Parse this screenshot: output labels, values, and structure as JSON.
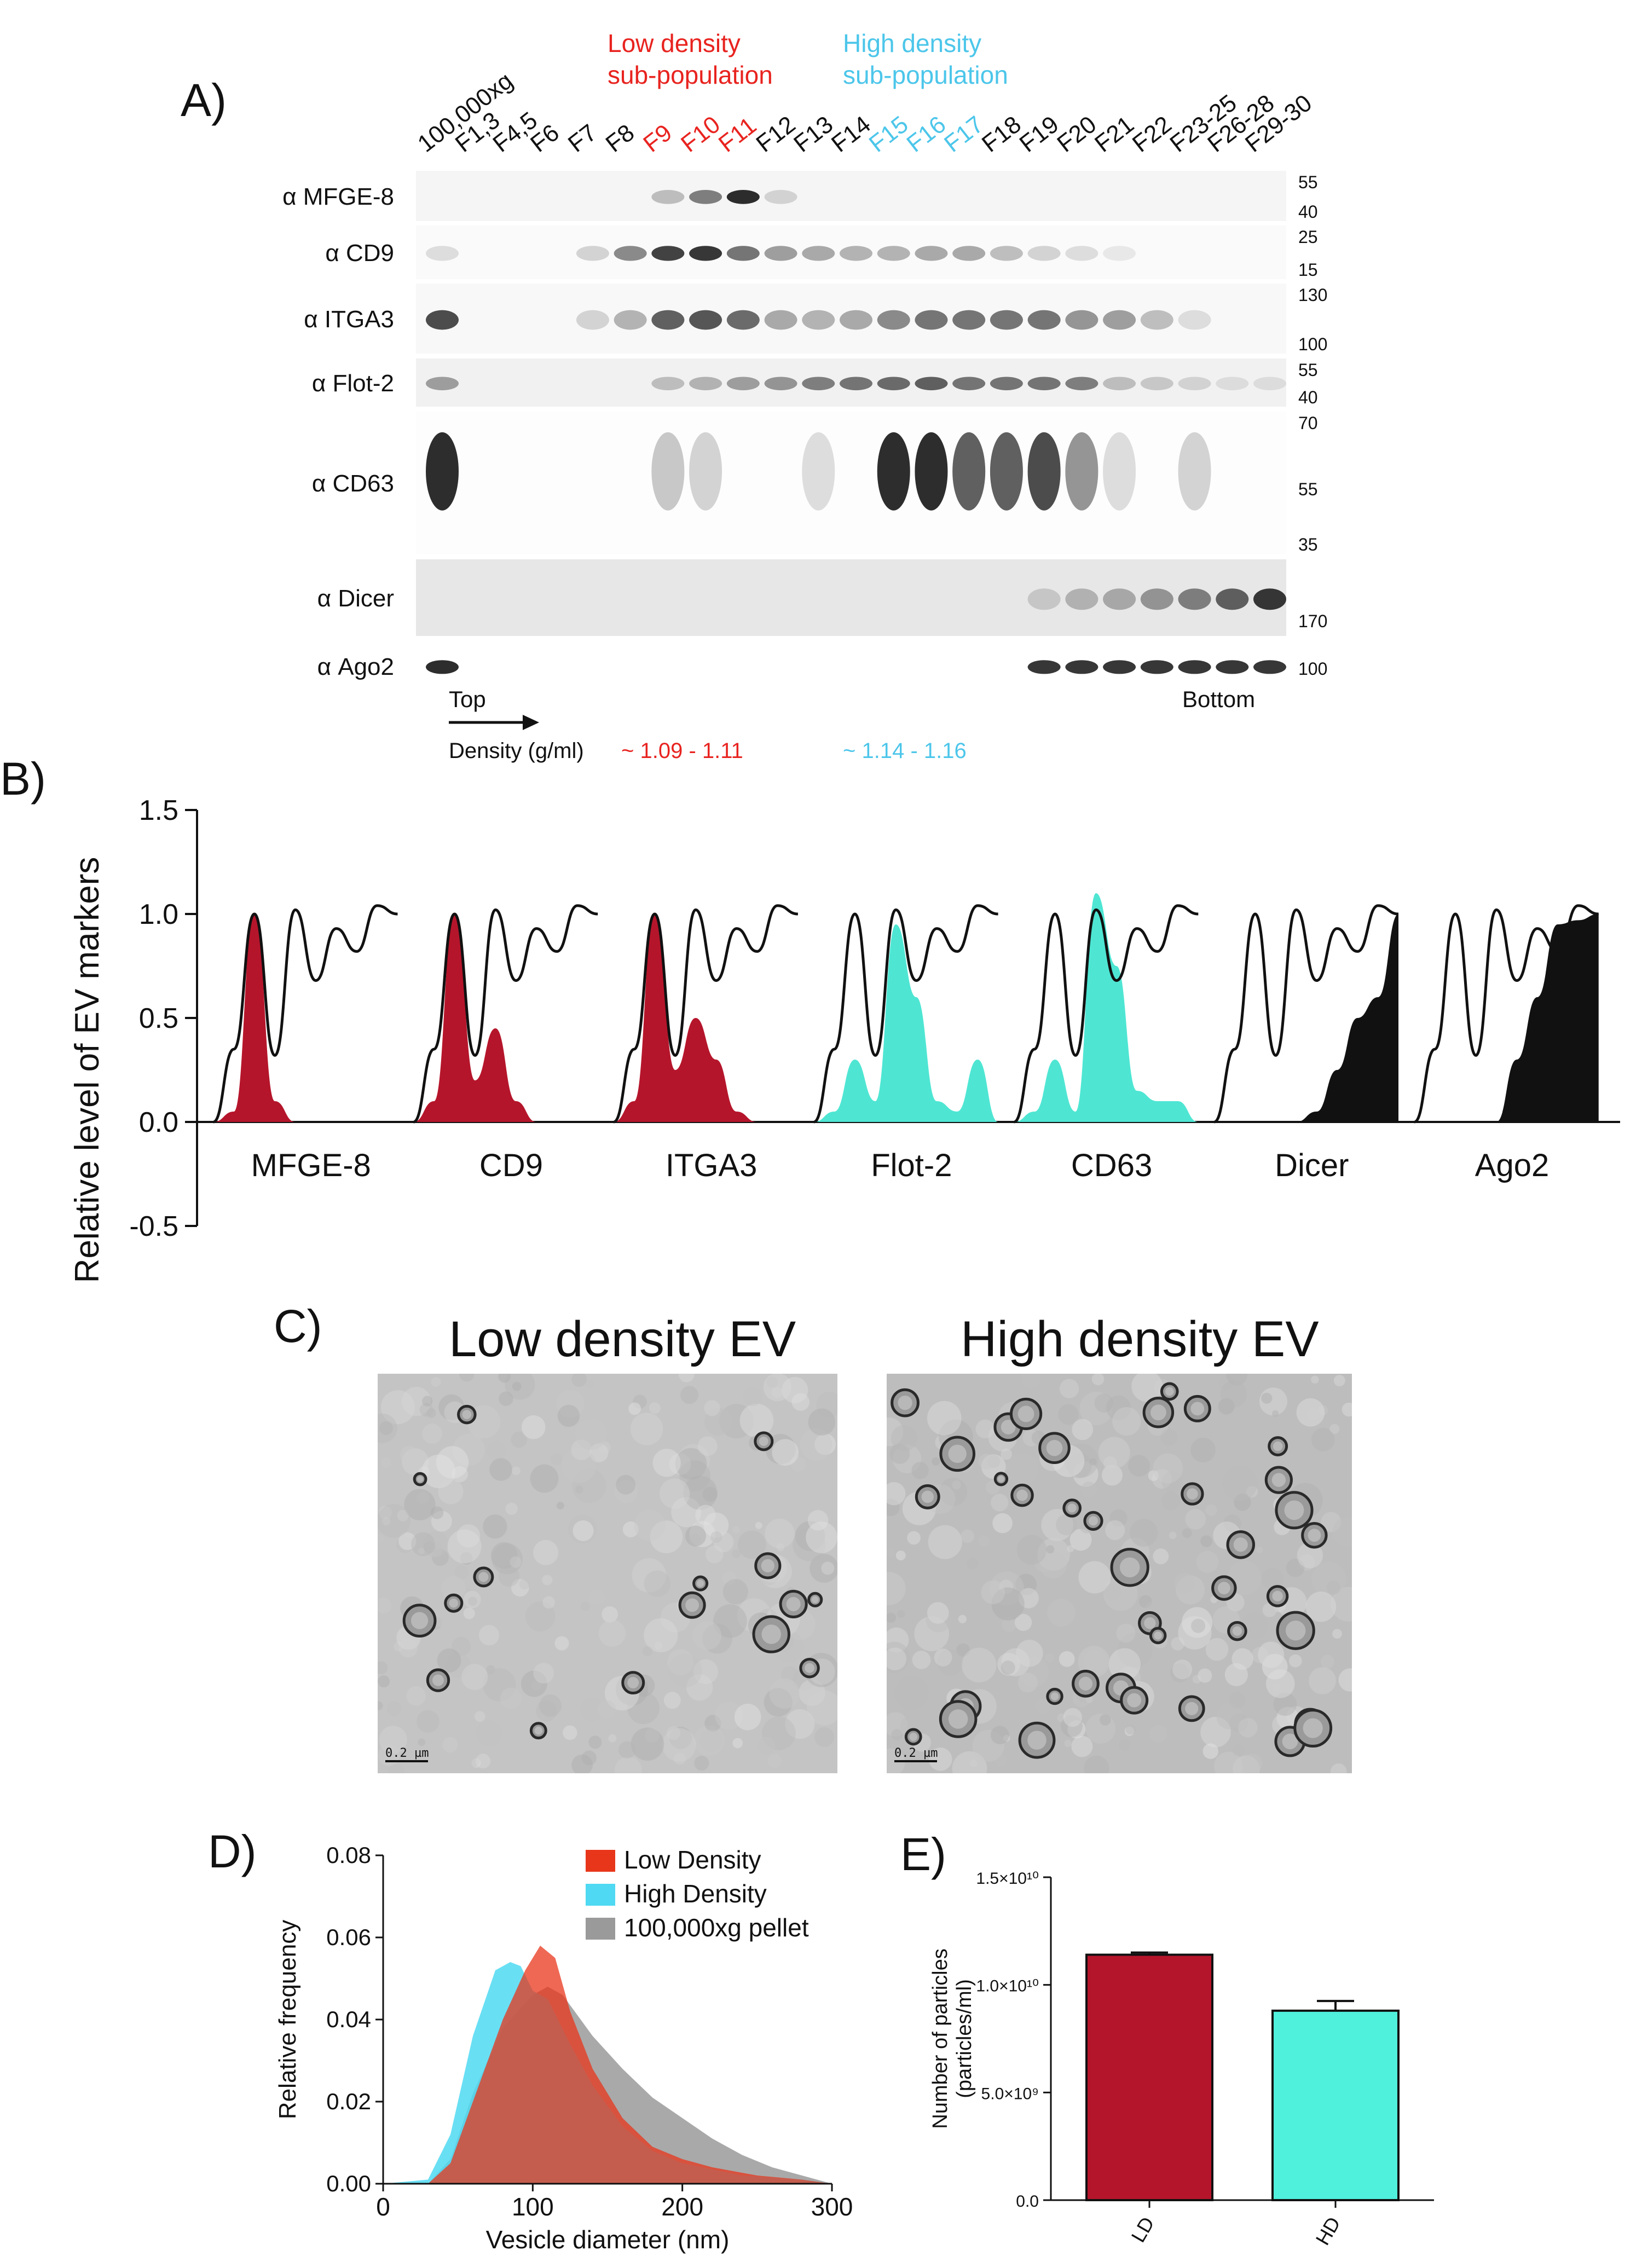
{
  "panels": {
    "a": "A)",
    "b": "B)",
    "c": "C)",
    "d": "D)",
    "e": "E)"
  },
  "panel_a": {
    "group_low": [
      "Low density",
      "sub-population"
    ],
    "group_high": [
      "High density",
      "sub-population"
    ],
    "lanes": [
      {
        "label": "100,000xg",
        "color": "#111111"
      },
      {
        "label": "F1,3",
        "color": "#111111"
      },
      {
        "label": "F4,5",
        "color": "#111111"
      },
      {
        "label": "F6",
        "color": "#111111"
      },
      {
        "label": "F7",
        "color": "#111111"
      },
      {
        "label": "F8",
        "color": "#111111"
      },
      {
        "label": "F9",
        "color": "#e8231f"
      },
      {
        "label": "F10",
        "color": "#e8231f"
      },
      {
        "label": "F11",
        "color": "#e8231f"
      },
      {
        "label": "F12",
        "color": "#111111"
      },
      {
        "label": "F13",
        "color": "#111111"
      },
      {
        "label": "F14",
        "color": "#111111"
      },
      {
        "label": "F15",
        "color": "#4cc6ea"
      },
      {
        "label": "F16",
        "color": "#4cc6ea"
      },
      {
        "label": "F17",
        "color": "#4cc6ea"
      },
      {
        "label": "F18",
        "color": "#111111"
      },
      {
        "label": "F19",
        "color": "#111111"
      },
      {
        "label": "F20",
        "color": "#111111"
      },
      {
        "label": "F21",
        "color": "#111111"
      },
      {
        "label": "F22",
        "color": "#111111"
      },
      {
        "label": "F23-25",
        "color": "#111111"
      },
      {
        "label": "F26-28",
        "color": "#111111"
      },
      {
        "label": "F29-30",
        "color": "#111111"
      }
    ],
    "blots": [
      {
        "antibody": "α MFGE-8",
        "mw": [
          "55",
          "40"
        ]
      },
      {
        "antibody": "α CD9",
        "mw": [
          "25",
          "15"
        ]
      },
      {
        "antibody": "α ITGA3",
        "mw": [
          "130",
          "100"
        ]
      },
      {
        "antibody": "α Flot-2",
        "mw": [
          "55",
          "40"
        ]
      },
      {
        "antibody": "α CD63",
        "mw": [
          "70",
          "55",
          "35"
        ]
      },
      {
        "antibody": "α Dicer",
        "mw": [
          "170"
        ]
      },
      {
        "antibody": "α Ago2",
        "mw": [
          "100"
        ]
      }
    ],
    "top_label": "Top",
    "bottom_label": "Bottom",
    "density_label": "Density (g/ml)",
    "density_low": "~ 1.09 - 1.11",
    "density_high": "~ 1.14 - 1.16",
    "colors": {
      "low": "#e8231f",
      "high": "#4cc6ea"
    }
  },
  "chart_data": [
    {
      "id": "B",
      "type": "area",
      "ylabel": "Relative level of EV markers",
      "ylim": [
        -0.5,
        1.5
      ],
      "yticks": [
        "1.5",
        "1.0",
        "0.5",
        "0.0",
        "-0.5"
      ],
      "categories": [
        "MFGE-8",
        "CD9",
        "ITGA3",
        "Flot-2",
        "CD63",
        "Dicer",
        "Ago2"
      ],
      "colors": [
        "#b5152b",
        "#b5152b",
        "#b5152b",
        "#4ee6d3",
        "#4ee6d3",
        "#111111",
        "#111111"
      ],
      "reference_profile": [
        0,
        0.35,
        1.0,
        0.32,
        1.02,
        0.68,
        0.93,
        0.82,
        1.04,
        1.0
      ],
      "marker_profiles": [
        [
          0,
          0.05,
          1.0,
          0.1,
          0,
          0,
          0,
          0,
          0,
          0
        ],
        [
          0,
          0.1,
          1.0,
          0.2,
          0.45,
          0.1,
          0,
          0,
          0,
          0
        ],
        [
          0,
          0.1,
          1.0,
          0.25,
          0.5,
          0.3,
          0.05,
          0,
          0,
          0
        ],
        [
          0,
          0.05,
          0.3,
          0.1,
          0.95,
          0.6,
          0.1,
          0.05,
          0.3,
          0
        ],
        [
          0,
          0.05,
          0.3,
          0.05,
          1.1,
          0.75,
          0.15,
          0.1,
          0.1,
          0
        ],
        [
          0,
          0,
          0,
          0,
          0,
          0.05,
          0.25,
          0.5,
          0.6,
          1.0
        ],
        [
          0,
          0,
          0,
          0,
          0,
          0.3,
          0.6,
          0.95,
          0.97,
          1.0
        ]
      ]
    },
    {
      "id": "D",
      "type": "area",
      "xlabel": "Vesicle diameter (nm)",
      "ylabel": "Relative frequency",
      "xlim": [
        0,
        300
      ],
      "ylim": [
        0,
        0.08
      ],
      "xticks": [
        "0",
        "100",
        "200",
        "300"
      ],
      "yticks": [
        "0.08",
        "0.06",
        "0.04",
        "0.02",
        "0.00"
      ],
      "series": [
        {
          "name": "Low Density",
          "color": "#e8361b",
          "x": [
            0,
            30,
            45,
            60,
            80,
            95,
            105,
            115,
            125,
            140,
            160,
            180,
            200,
            220,
            250,
            280,
            300
          ],
          "y": [
            0,
            0,
            0.005,
            0.02,
            0.04,
            0.052,
            0.058,
            0.055,
            0.042,
            0.028,
            0.016,
            0.009,
            0.006,
            0.004,
            0.002,
            0.001,
            0
          ]
        },
        {
          "name": "High Density",
          "color": "#4fd9f2",
          "x": [
            0,
            30,
            45,
            60,
            75,
            85,
            92,
            100,
            110,
            125,
            140,
            160,
            180,
            200,
            240,
            280,
            300
          ],
          "y": [
            0,
            0.001,
            0.012,
            0.036,
            0.052,
            0.054,
            0.053,
            0.047,
            0.045,
            0.034,
            0.024,
            0.014,
            0.008,
            0.005,
            0.002,
            0.001,
            0
          ]
        },
        {
          "name": "100,000xg pellet",
          "color": "#9a9a9a",
          "x": [
            0,
            30,
            45,
            60,
            80,
            100,
            110,
            120,
            140,
            160,
            180,
            200,
            220,
            240,
            260,
            280,
            300
          ],
          "y": [
            0,
            0,
            0.006,
            0.022,
            0.038,
            0.046,
            0.048,
            0.046,
            0.036,
            0.028,
            0.021,
            0.016,
            0.011,
            0.007,
            0.004,
            0.002,
            0
          ]
        }
      ]
    },
    {
      "id": "E",
      "type": "bar",
      "ylabel_lines": [
        "Number of particles",
        "(particles/ml)"
      ],
      "ylim": [
        0,
        15000000000
      ],
      "yticks": [
        {
          "value": 15000000000,
          "label": "1.5×10¹⁰"
        },
        {
          "value": 10000000000,
          "label": "1.0×10¹⁰"
        },
        {
          "value": 5000000000,
          "label": "5.0×10⁹"
        },
        {
          "value": 0,
          "label": "0.0"
        }
      ],
      "categories": [
        "LD",
        "HD"
      ],
      "values": [
        11400000000,
        8800000000
      ],
      "errors": [
        100000000,
        450000000
      ],
      "colors": [
        "#b5152b",
        "#4ff0dc"
      ]
    }
  ],
  "panel_c": {
    "titles": [
      "Low density EV",
      "High density EV"
    ],
    "scale_bar": "0.2 µm"
  }
}
